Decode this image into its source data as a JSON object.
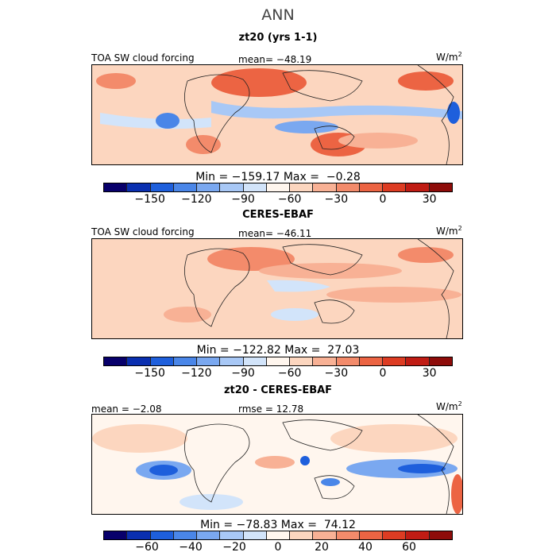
{
  "figure_title": "ANN",
  "panels": [
    {
      "title": "zt20 (yrs 1-1)",
      "left_label": "TOA SW cloud forcing",
      "center_label": "mean= −48.19",
      "units": "W/m",
      "units_sup": "2",
      "minmax": "Min = −159.17 Max =  −0.28",
      "colorbar_ticks": [
        "−150",
        "−120",
        "−90",
        "−60",
        "−30",
        "0",
        "30"
      ],
      "colorbar_tick_values": [
        -150,
        -120,
        -90,
        -60,
        -30,
        0,
        30
      ],
      "colorbar_range": [
        -180,
        45
      ]
    },
    {
      "title": "CERES-EBAF",
      "left_label": "TOA SW cloud forcing",
      "center_label": "mean= −46.11",
      "units": "W/m",
      "units_sup": "2",
      "minmax": "Min = −122.82 Max =  27.03",
      "colorbar_ticks": [
        "−150",
        "−120",
        "−90",
        "−60",
        "−30",
        "0",
        "30"
      ],
      "colorbar_tick_values": [
        -150,
        -120,
        -90,
        -60,
        -30,
        0,
        30
      ],
      "colorbar_range": [
        -180,
        45
      ]
    },
    {
      "title": "zt20 - CERES-EBAF",
      "left_label": "mean =  −2.08",
      "center_label": "rmse =  12.78",
      "units": "W/m",
      "units_sup": "2",
      "minmax": "Min = −78.83 Max =  74.12",
      "colorbar_ticks": [
        "−60",
        "−40",
        "−20",
        "0",
        "20",
        "40",
        "60"
      ],
      "colorbar_tick_values": [
        -60,
        -40,
        -20,
        0,
        20,
        40,
        60
      ],
      "colorbar_range": [
        -80,
        80
      ]
    }
  ],
  "colormap": [
    "#08006b",
    "#0a2fb0",
    "#1e5fdc",
    "#4a86e8",
    "#7aa8f0",
    "#a8c8f6",
    "#d2e4fa",
    "#fff6ee",
    "#fcd6bf",
    "#f8b195",
    "#f38b6b",
    "#ec6443",
    "#dd3c23",
    "#c01c14",
    "#8e0c0a"
  ]
}
